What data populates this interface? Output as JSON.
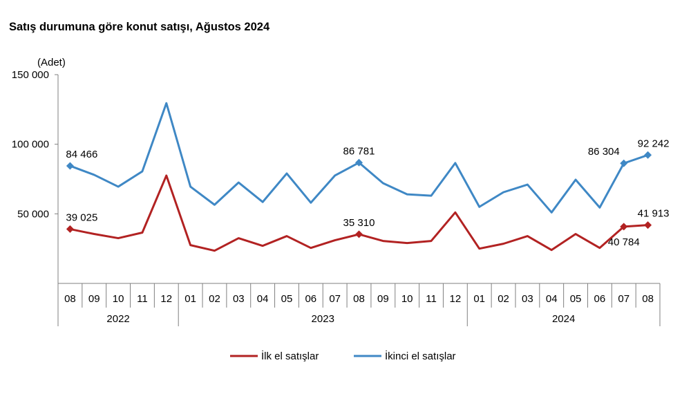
{
  "chart_data": {
    "type": "line",
    "title": "Satış durumuna göre konut satışı, Ağustos 2024",
    "ylabel": "(Adet)",
    "ylim": [
      0,
      150000
    ],
    "yticks": [
      {
        "value": 50000,
        "label": "50 000"
      },
      {
        "value": 100000,
        "label": "100 000"
      },
      {
        "value": 150000,
        "label": "150 000"
      }
    ],
    "categories": [
      "08",
      "09",
      "10",
      "11",
      "12",
      "01",
      "02",
      "03",
      "04",
      "05",
      "06",
      "07",
      "08",
      "09",
      "10",
      "11",
      "12",
      "01",
      "02",
      "03",
      "04",
      "05",
      "06",
      "07",
      "08"
    ],
    "year_groups": [
      {
        "label": "2022",
        "start": 0,
        "end": 4
      },
      {
        "label": "2023",
        "start": 5,
        "end": 16
      },
      {
        "label": "2024",
        "start": 17,
        "end": 24
      }
    ],
    "series": [
      {
        "name": "İlk el satışlar",
        "color": "#B22222",
        "values": [
          39025,
          35500,
          32500,
          36500,
          77500,
          27500,
          23500,
          32500,
          27000,
          34000,
          25500,
          31000,
          35310,
          30500,
          29000,
          30500,
          51000,
          25000,
          28500,
          34000,
          24000,
          35500,
          25500,
          40784,
          41913
        ],
        "markers": [
          0,
          12,
          23,
          24
        ],
        "labels": [
          {
            "index": 0,
            "text": "39 025",
            "pos": "above"
          },
          {
            "index": 12,
            "text": "35 310",
            "pos": "above"
          },
          {
            "index": 23,
            "text": "40 784",
            "pos": "below"
          },
          {
            "index": 24,
            "text": "41 913",
            "pos": "above"
          }
        ]
      },
      {
        "name": "İkinci el satışlar",
        "color": "#3F88C5",
        "values": [
          84466,
          78000,
          69500,
          80500,
          129500,
          69500,
          56500,
          72500,
          58500,
          79000,
          58000,
          77500,
          86781,
          72000,
          64000,
          63000,
          86500,
          55000,
          65500,
          71000,
          51000,
          74500,
          54500,
          86304,
          92242
        ],
        "markers": [
          0,
          12,
          23,
          24
        ],
        "labels": [
          {
            "index": 0,
            "text": "84 466",
            "pos": "above"
          },
          {
            "index": 12,
            "text": "86 781",
            "pos": "above"
          },
          {
            "index": 23,
            "text": "86 304",
            "pos": "above-left"
          },
          {
            "index": 24,
            "text": "92 242",
            "pos": "above"
          }
        ]
      }
    ],
    "legend": {
      "placement": "bottom-center"
    }
  }
}
